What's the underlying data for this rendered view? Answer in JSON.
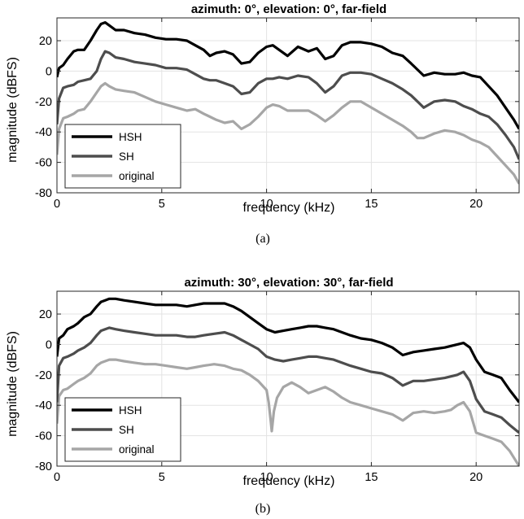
{
  "chart_data": [
    {
      "type": "line",
      "title": "azimuth: 0°, elevation: 0°, far-field",
      "xlabel": "frequency (kHz)",
      "ylabel": "magnitude (dBFS)",
      "xlim": [
        0,
        22.05
      ],
      "ylim": [
        -80,
        35
      ],
      "xticks": [
        0,
        5,
        10,
        15,
        20
      ],
      "yticks": [
        20,
        0,
        -20,
        -40,
        -60,
        -80
      ],
      "grid": true,
      "legend_position": "lower-left",
      "caption": "(a)",
      "series": [
        {
          "name": "HSH",
          "color": "#000000",
          "x": [
            0,
            0.1,
            0.3,
            0.5,
            0.8,
            1.0,
            1.3,
            1.6,
            1.9,
            2.1,
            2.3,
            2.5,
            2.8,
            3.2,
            3.7,
            4.2,
            4.7,
            5.2,
            5.7,
            6.2,
            6.6,
            7.0,
            7.3,
            7.6,
            8.0,
            8.4,
            8.8,
            9.2,
            9.6,
            10.0,
            10.3,
            10.6,
            11.0,
            11.5,
            12.0,
            12.4,
            12.8,
            13.2,
            13.6,
            14.0,
            14.5,
            15.0,
            15.5,
            16.0,
            16.5,
            16.9,
            17.2,
            17.5,
            18.0,
            18.5,
            19.0,
            19.4,
            19.8,
            20.2,
            20.6,
            21.0,
            21.4,
            21.8,
            22.05
          ],
          "y": [
            -4,
            2,
            4,
            8,
            13,
            14,
            14,
            20,
            27,
            31,
            32,
            30,
            27,
            27,
            25,
            24,
            22,
            21,
            21,
            20,
            17,
            14,
            10,
            12,
            13,
            11,
            5,
            6,
            12,
            16,
            17,
            14,
            10,
            16,
            13,
            15,
            8,
            10,
            17,
            19,
            19,
            18,
            16,
            12,
            10,
            5,
            1,
            -3,
            -1,
            -2,
            -2,
            -1,
            -3,
            -4,
            -10,
            -16,
            -24,
            -32,
            -38
          ]
        },
        {
          "name": "SH",
          "color": "#4d4d4d",
          "x": [
            0,
            0.1,
            0.3,
            0.5,
            0.8,
            1.0,
            1.3,
            1.6,
            1.9,
            2.1,
            2.3,
            2.5,
            2.8,
            3.2,
            3.7,
            4.2,
            4.7,
            5.2,
            5.7,
            6.2,
            6.6,
            7.0,
            7.3,
            7.6,
            8.0,
            8.4,
            8.8,
            9.2,
            9.6,
            10.0,
            10.3,
            10.6,
            11.0,
            11.5,
            12.0,
            12.4,
            12.8,
            13.2,
            13.6,
            14.0,
            14.5,
            15.0,
            15.5,
            16.0,
            16.5,
            16.9,
            17.2,
            17.5,
            18.0,
            18.5,
            19.0,
            19.4,
            19.8,
            20.2,
            20.6,
            21.0,
            21.4,
            21.8,
            22.05
          ],
          "y": [
            -35,
            -18,
            -11,
            -10,
            -9,
            -7,
            -6,
            -5,
            0,
            8,
            13,
            12,
            9,
            8,
            6,
            5,
            4,
            2,
            2,
            1,
            -2,
            -5,
            -6,
            -6,
            -8,
            -10,
            -15,
            -14,
            -8,
            -5,
            -5,
            -4,
            -5,
            -3,
            -4,
            -8,
            -14,
            -10,
            -3,
            -1,
            -1,
            -2,
            -5,
            -8,
            -12,
            -16,
            -20,
            -24,
            -20,
            -19,
            -20,
            -23,
            -25,
            -28,
            -30,
            -35,
            -42,
            -50,
            -58
          ]
        },
        {
          "name": "original",
          "color": "#a6a6a6",
          "x": [
            0,
            0.1,
            0.3,
            0.5,
            0.8,
            1.0,
            1.3,
            1.6,
            1.9,
            2.1,
            2.3,
            2.5,
            2.8,
            3.2,
            3.7,
            4.2,
            4.7,
            5.2,
            5.7,
            6.2,
            6.6,
            7.0,
            7.3,
            7.6,
            8.0,
            8.4,
            8.8,
            9.2,
            9.6,
            10.0,
            10.3,
            10.6,
            11.0,
            11.5,
            12.0,
            12.4,
            12.8,
            13.2,
            13.6,
            14.0,
            14.5,
            15.0,
            15.5,
            16.0,
            16.5,
            16.9,
            17.2,
            17.5,
            18.0,
            18.5,
            19.0,
            19.4,
            19.8,
            20.2,
            20.6,
            21.0,
            21.4,
            21.8,
            22.05
          ],
          "y": [
            -55,
            -38,
            -31,
            -30,
            -28,
            -26,
            -25,
            -20,
            -14,
            -10,
            -8,
            -10,
            -12,
            -13,
            -14,
            -17,
            -20,
            -22,
            -24,
            -26,
            -25,
            -28,
            -30,
            -32,
            -34,
            -33,
            -38,
            -35,
            -30,
            -24,
            -22,
            -23,
            -26,
            -26,
            -26,
            -29,
            -33,
            -29,
            -24,
            -20,
            -20,
            -24,
            -28,
            -32,
            -36,
            -40,
            -44,
            -44,
            -41,
            -39,
            -40,
            -42,
            -45,
            -47,
            -50,
            -56,
            -62,
            -68,
            -74
          ]
        }
      ]
    },
    {
      "type": "line",
      "title": "azimuth: 30°, elevation: 30°, far-field",
      "xlabel": "frequency (kHz)",
      "ylabel": "magnitude (dBFS)",
      "xlim": [
        0,
        22.05
      ],
      "ylim": [
        -80,
        35
      ],
      "xticks": [
        0,
        5,
        10,
        15,
        20
      ],
      "yticks": [
        20,
        0,
        -20,
        -40,
        -60,
        -80
      ],
      "grid": true,
      "legend_position": "lower-left",
      "caption": "(b)",
      "series": [
        {
          "name": "HSH",
          "color": "#000000",
          "x": [
            0,
            0.1,
            0.3,
            0.5,
            0.8,
            1.0,
            1.3,
            1.6,
            1.9,
            2.1,
            2.3,
            2.5,
            2.8,
            3.2,
            3.7,
            4.2,
            4.7,
            5.2,
            5.7,
            6.2,
            6.6,
            7.0,
            7.5,
            8.0,
            8.4,
            8.8,
            9.2,
            9.6,
            10.0,
            10.4,
            10.8,
            11.2,
            11.6,
            12.0,
            12.4,
            12.8,
            13.2,
            13.6,
            14.0,
            14.5,
            15.0,
            15.5,
            16.0,
            16.5,
            17.0,
            17.5,
            18.0,
            18.5,
            18.8,
            19.1,
            19.4,
            19.7,
            20.0,
            20.4,
            20.8,
            21.2,
            21.6,
            22.05
          ],
          "y": [
            -8,
            4,
            6,
            10,
            12,
            14,
            18,
            20,
            25,
            28,
            29,
            30,
            30,
            29,
            28,
            27,
            26,
            26,
            26,
            25,
            26,
            27,
            27,
            27,
            25,
            22,
            18,
            14,
            10,
            8,
            9,
            10,
            11,
            12,
            12,
            11,
            10,
            8,
            6,
            4,
            3,
            1,
            -2,
            -7,
            -5,
            -4,
            -3,
            -2,
            -1,
            0,
            1,
            -2,
            -10,
            -18,
            -20,
            -22,
            -30,
            -38
          ]
        },
        {
          "name": "SH",
          "color": "#4d4d4d",
          "x": [
            0,
            0.1,
            0.3,
            0.5,
            0.8,
            1.0,
            1.3,
            1.6,
            1.9,
            2.1,
            2.3,
            2.5,
            2.8,
            3.2,
            3.7,
            4.2,
            4.7,
            5.2,
            5.7,
            6.2,
            6.6,
            7.0,
            7.5,
            8.0,
            8.4,
            8.8,
            9.2,
            9.6,
            10.0,
            10.4,
            10.8,
            11.2,
            11.6,
            12.0,
            12.4,
            12.8,
            13.2,
            13.6,
            14.0,
            14.5,
            15.0,
            15.5,
            16.0,
            16.5,
            17.0,
            17.5,
            18.0,
            18.5,
            18.8,
            19.1,
            19.4,
            19.7,
            20.0,
            20.4,
            20.8,
            21.2,
            21.6,
            22.05
          ],
          "y": [
            -38,
            -14,
            -9,
            -8,
            -6,
            -4,
            -2,
            1,
            6,
            9,
            10,
            11,
            10,
            9,
            8,
            7,
            6,
            6,
            6,
            5,
            5,
            6,
            7,
            8,
            6,
            3,
            0,
            -3,
            -8,
            -10,
            -11,
            -10,
            -9,
            -8,
            -8,
            -9,
            -10,
            -12,
            -14,
            -16,
            -18,
            -19,
            -22,
            -27,
            -24,
            -24,
            -23,
            -22,
            -21,
            -20,
            -18,
            -24,
            -36,
            -44,
            -46,
            -48,
            -53,
            -58
          ]
        },
        {
          "name": "original",
          "color": "#a6a6a6",
          "x": [
            0,
            0.1,
            0.3,
            0.5,
            0.8,
            1.0,
            1.3,
            1.6,
            1.9,
            2.1,
            2.3,
            2.5,
            2.8,
            3.2,
            3.7,
            4.2,
            4.7,
            5.2,
            5.7,
            6.2,
            6.6,
            7.0,
            7.5,
            8.0,
            8.4,
            8.8,
            9.2,
            9.6,
            10.0,
            10.1,
            10.2,
            10.25,
            10.35,
            10.5,
            10.8,
            11.2,
            11.6,
            12.0,
            12.4,
            12.8,
            13.2,
            13.6,
            14.0,
            14.5,
            15.0,
            15.5,
            16.0,
            16.5,
            17.0,
            17.5,
            18.0,
            18.5,
            18.8,
            19.1,
            19.4,
            19.7,
            20.0,
            20.4,
            20.8,
            21.2,
            21.6,
            22.05
          ],
          "y": [
            -52,
            -34,
            -30,
            -29,
            -26,
            -24,
            -22,
            -19,
            -14,
            -12,
            -11,
            -10,
            -10,
            -11,
            -12,
            -13,
            -13,
            -14,
            -15,
            -16,
            -15,
            -14,
            -13,
            -14,
            -16,
            -17,
            -20,
            -24,
            -30,
            -38,
            -50,
            -57,
            -44,
            -35,
            -28,
            -25,
            -28,
            -32,
            -30,
            -28,
            -31,
            -35,
            -38,
            -40,
            -42,
            -44,
            -46,
            -50,
            -45,
            -44,
            -45,
            -44,
            -43,
            -40,
            -38,
            -44,
            -58,
            -60,
            -62,
            -64,
            -70,
            -80
          ]
        }
      ]
    }
  ]
}
